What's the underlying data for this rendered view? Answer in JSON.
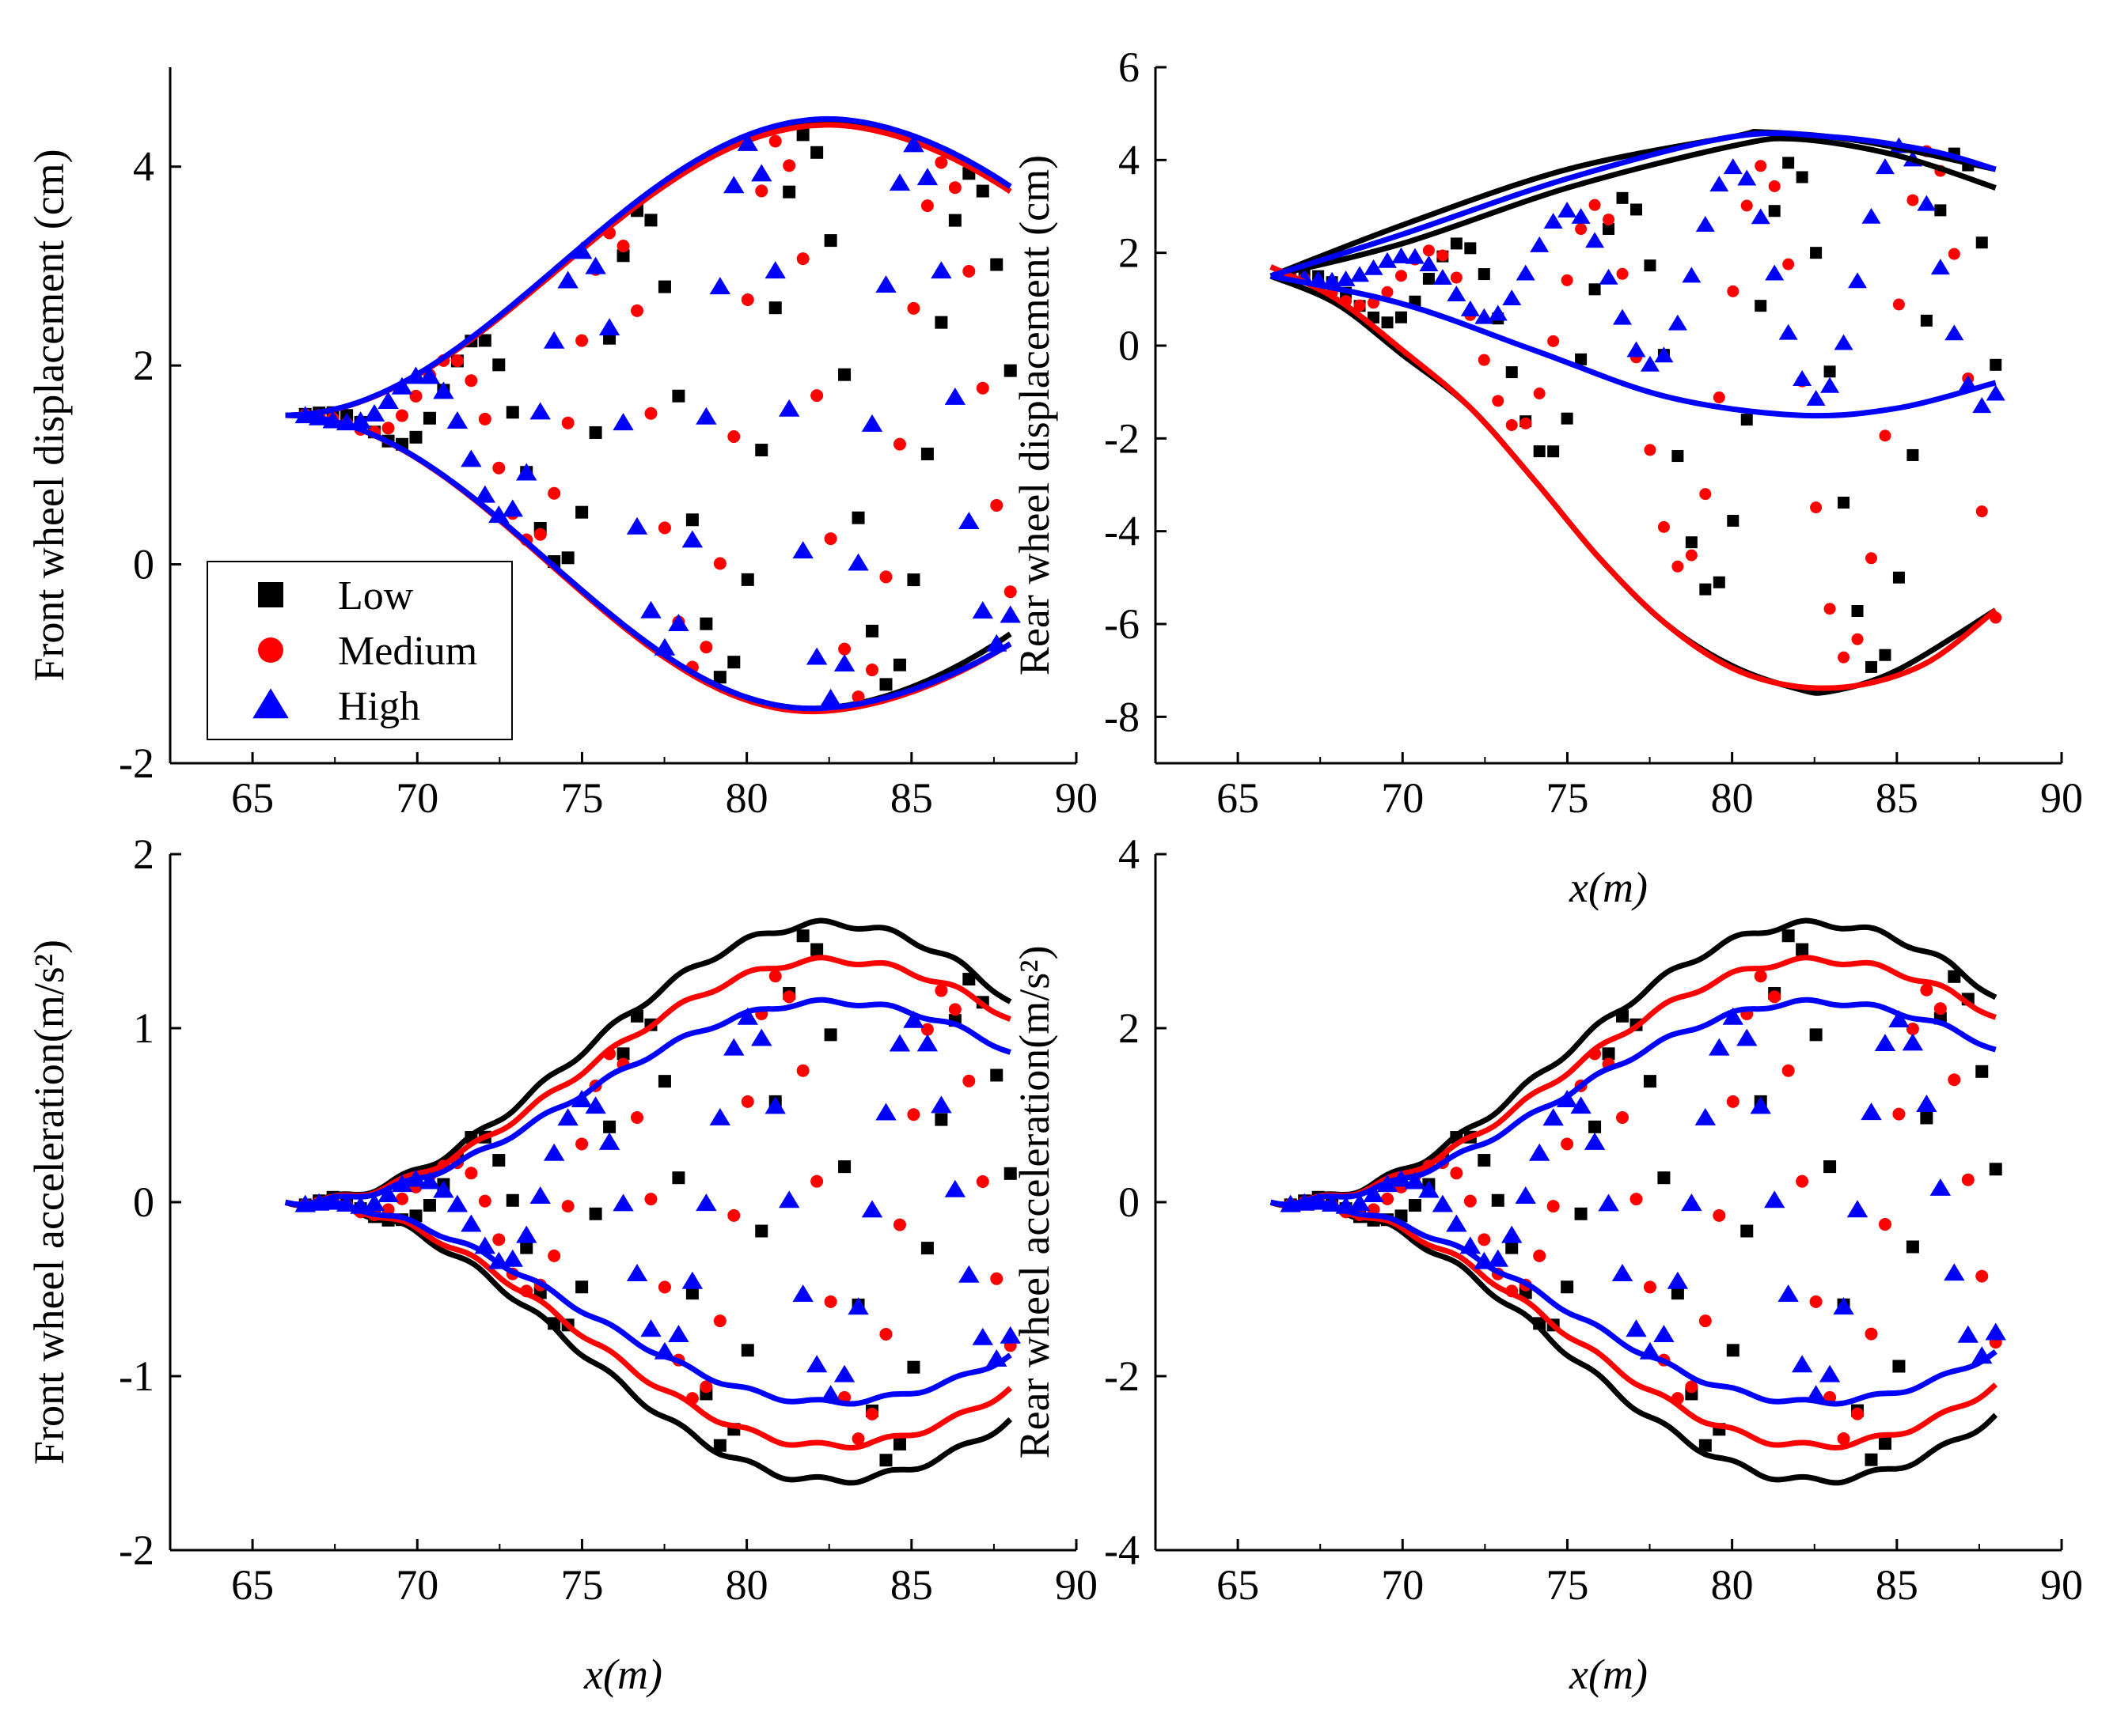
{
  "colors": {
    "Low": "#000000",
    "Medium": "#ff0000",
    "High": "#0000ff",
    "axis": "#000000"
  },
  "legend": [
    {
      "name": "Low",
      "marker": "square"
    },
    {
      "name": "Medium",
      "marker": "circle"
    },
    {
      "name": "High",
      "marker": "triangle"
    }
  ],
  "chart_data": [
    {
      "id": "front_disp",
      "type": "scatter",
      "ylabel": "Front wheel displacement (cm)",
      "xlabel": "",
      "xlim": [
        62.5,
        90
      ],
      "ylim": [
        -2,
        5
      ],
      "xticks": [
        65,
        70,
        75,
        80,
        85,
        90
      ],
      "yticks": [
        -2,
        0,
        2,
        4
      ],
      "mode": "env",
      "x0": 66,
      "x1": 88,
      "start": 1.5,
      "upper": 4.45,
      "lower": -1.45,
      "peak": 82.5,
      "trough": 82,
      "env": [
        {
          "series": "Low",
          "up": 0,
          "lo": 0,
          "end_up": 3.8,
          "end_lo": -0.7
        },
        {
          "series": "Medium",
          "up": -0.03,
          "lo": -0.03,
          "end_up": 3.75,
          "end_lo": -0.8
        },
        {
          "series": "High",
          "up": 0.03,
          "lo": 0.0,
          "end_up": 3.8,
          "end_lo": -0.8
        }
      ],
      "phases": [
        0.0,
        0.45,
        0.9,
        1.35,
        1.8,
        2.25,
        2.7,
        3.15,
        3.6,
        4.05,
        4.5,
        4.95,
        5.4,
        5.85,
        6.3
      ],
      "showLegend": true
    },
    {
      "id": "rear_disp",
      "type": "scatter",
      "ylabel": "Rear wheel displacement (cm)",
      "xlabel": "x(m)",
      "xlim": [
        62.5,
        90
      ],
      "ylim": [
        -9,
        6
      ],
      "xticks": [
        65,
        70,
        75,
        80,
        85,
        90
      ],
      "yticks": [
        -8,
        -6,
        -4,
        -2,
        0,
        2,
        4,
        6
      ],
      "mode": "lines",
      "x0": 66,
      "x1": 88,
      "lines": [
        {
          "series": "Low",
          "points": [
            [
              66,
              1.5
            ],
            [
              70,
              2.6
            ],
            [
              75,
              3.8
            ],
            [
              80,
              4.5
            ],
            [
              81,
              4.6
            ],
            [
              84,
              4.4
            ],
            [
              88,
              3.8
            ]
          ]
        },
        {
          "series": "Low",
          "points": [
            [
              66,
              1.5
            ],
            [
              70,
              2.2
            ],
            [
              75,
              3.4
            ],
            [
              80,
              4.3
            ],
            [
              82,
              4.45
            ],
            [
              85,
              4.1
            ],
            [
              88,
              3.4
            ]
          ]
        },
        {
          "series": "Low",
          "points": [
            [
              66,
              1.5
            ],
            [
              68,
              0.9
            ],
            [
              70,
              -0.2
            ],
            [
              72,
              -1.3
            ],
            [
              74,
              -2.9
            ],
            [
              76,
              -4.6
            ],
            [
              78,
              -6.0
            ],
            [
              80,
              -6.9
            ],
            [
              82,
              -7.4
            ],
            [
              83,
              -7.45
            ],
            [
              85,
              -7.0
            ],
            [
              88,
              -5.7
            ]
          ]
        },
        {
          "series": "Medium",
          "points": [
            [
              66,
              1.7
            ],
            [
              68,
              1.0
            ],
            [
              70,
              -0.1
            ],
            [
              72,
              -1.3
            ],
            [
              74,
              -2.9
            ],
            [
              76,
              -4.6
            ],
            [
              78,
              -6.0
            ],
            [
              80,
              -6.95
            ],
            [
              82,
              -7.35
            ],
            [
              84,
              -7.3
            ],
            [
              86,
              -6.8
            ],
            [
              88,
              -5.7
            ]
          ]
        },
        {
          "series": "High",
          "points": [
            [
              66,
              1.5
            ],
            [
              70,
              2.4
            ],
            [
              75,
              3.6
            ],
            [
              80,
              4.5
            ],
            [
              83,
              4.5
            ],
            [
              86,
              4.2
            ],
            [
              88,
              3.8
            ]
          ]
        },
        {
          "series": "High",
          "points": [
            [
              66,
              1.5
            ],
            [
              70,
              0.9
            ],
            [
              74,
              -0.1
            ],
            [
              78,
              -1.1
            ],
            [
              82,
              -1.5
            ],
            [
              85,
              -1.35
            ],
            [
              88,
              -0.8
            ]
          ]
        }
      ],
      "bands": [
        {
          "series": "Low",
          "hi": 4.4,
          "lo": -7.3
        },
        {
          "series": "Medium",
          "hi": 4.4,
          "lo": -7.2
        },
        {
          "series": "High",
          "hi": 4.4,
          "lo": -1.4
        }
      ],
      "phases": [
        0.0,
        0.45,
        0.9,
        1.35,
        1.8,
        2.25,
        2.7,
        3.15,
        3.6,
        4.05,
        4.5,
        4.95,
        5.4,
        5.85,
        6.3
      ]
    },
    {
      "id": "front_acc",
      "type": "scatter",
      "ylabel": "Front wheel acceleration(m/s²)",
      "xlabel": "x(m)",
      "xlim": [
        62.5,
        90
      ],
      "ylim": [
        -2,
        2
      ],
      "xticks": [
        65,
        70,
        75,
        80,
        85,
        90
      ],
      "yticks": [
        -2,
        -1,
        0,
        1,
        2
      ],
      "mode": "env",
      "x0": 66,
      "x1": 88,
      "start": 0,
      "upper": 1,
      "lower": -1,
      "peak": 82.5,
      "trough": 82.5,
      "env": [
        {
          "series": "Low",
          "up": 1.6,
          "lo": 1.6,
          "end_up": 1.15,
          "end_lo": -1.25,
          "scale": true
        },
        {
          "series": "Medium",
          "up": 1.39,
          "lo": 1.4,
          "end_up": 1.05,
          "end_lo": -1.07,
          "scale": true
        },
        {
          "series": "High",
          "up": 1.15,
          "lo": 1.15,
          "end_up": 0.86,
          "end_lo": -0.88,
          "scale": true
        }
      ],
      "phases": [
        0.0,
        0.45,
        0.9,
        1.35,
        1.8,
        2.25,
        2.7,
        3.15,
        3.6,
        4.05,
        4.5,
        4.95,
        5.4,
        5.85,
        6.3
      ]
    },
    {
      "id": "rear_acc",
      "type": "scatter",
      "ylabel": "Rear wheel acceleration(m/s²)",
      "xlabel": "x(m)",
      "xlim": [
        62.5,
        90
      ],
      "ylim": [
        -4,
        4
      ],
      "xticks": [
        65,
        70,
        75,
        80,
        85,
        90
      ],
      "yticks": [
        -4,
        -2,
        0,
        2,
        4
      ],
      "mode": "env",
      "x0": 66,
      "x1": 88,
      "start": 0,
      "upper": 1,
      "lower": -1,
      "peak": 82.5,
      "trough": 82.5,
      "env": [
        {
          "series": "Low",
          "up": 3.2,
          "lo": 3.2,
          "end_up": 2.35,
          "end_lo": -2.45,
          "scale": true
        },
        {
          "series": "Medium",
          "up": 2.78,
          "lo": 2.8,
          "end_up": 2.12,
          "end_lo": -2.1,
          "scale": true
        },
        {
          "series": "High",
          "up": 2.3,
          "lo": 2.3,
          "end_up": 1.75,
          "end_lo": -1.72,
          "scale": true
        }
      ],
      "phases": [
        0.0,
        0.45,
        0.9,
        1.35,
        1.8,
        2.25,
        2.7,
        3.15,
        3.6,
        4.05,
        4.5,
        4.95,
        5.4,
        5.85,
        6.3
      ]
    }
  ]
}
